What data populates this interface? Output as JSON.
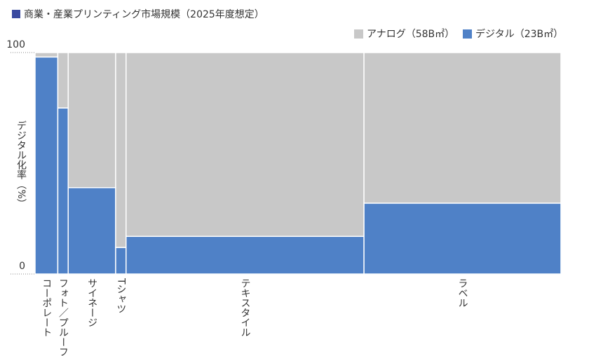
{
  "chart_data": {
    "type": "mekko",
    "title": "商業・産業プリンティング市場規模（2025年度想定）",
    "title_marker_color": "#3a4aa0",
    "y_label": "デジタル化率（%）",
    "categories": [
      "コーポレート",
      "フォト／プルーフ",
      "サイネージ",
      "Tシャツ",
      "テキスタイル",
      "ラベル"
    ],
    "sizes": [
      3.5,
      1.6,
      7.3,
      1.6,
      36.6,
      30.3
    ],
    "series": [
      {
        "name": "アナログ（58B㎡）",
        "color": "#c8c8c8",
        "values": [
          2,
          25,
          61,
          88,
          83,
          68
        ]
      },
      {
        "name": "デジタル（23B㎡）",
        "color": "#4f81c7",
        "values": [
          98,
          75,
          39,
          12,
          17,
          32
        ]
      }
    ],
    "ylim": [
      0,
      100
    ],
    "yticks": [
      0,
      100
    ]
  }
}
